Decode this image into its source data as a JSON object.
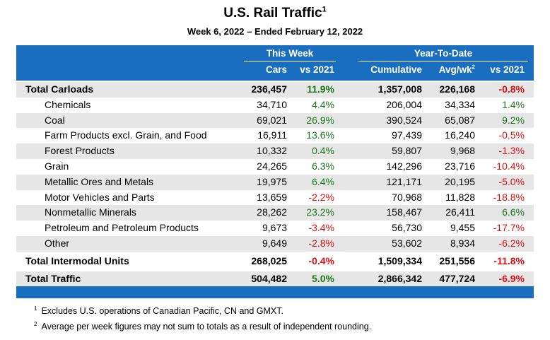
{
  "title": "U.S. Rail Traffic",
  "title_footnote": "1",
  "subtitle": "Week 6, 2022 – Ended February 12, 2022",
  "header": {
    "group_this_week": "This Week",
    "group_ytd": "Year-To-Date",
    "col_cars": "Cars",
    "col_vs2021_week": "vs 2021",
    "col_cumulative": "Cumulative",
    "col_avgwk": "Avg/wk",
    "col_avgwk_sup": "2",
    "col_vs2021_ytd": "vs 2021"
  },
  "rows": [
    {
      "label": "Total Carloads",
      "cars": "236,457",
      "week_vs": "11.9%",
      "cum": "1,357,008",
      "avg": "226,168",
      "ytd_vs": "-0.8%"
    },
    {
      "label": "Chemicals",
      "cars": "34,710",
      "week_vs": "4.4%",
      "cum": "206,004",
      "avg": "34,334",
      "ytd_vs": "1.4%"
    },
    {
      "label": "Coal",
      "cars": "69,021",
      "week_vs": "26.9%",
      "cum": "390,524",
      "avg": "65,087",
      "ytd_vs": "9.2%"
    },
    {
      "label": "Farm Products excl. Grain, and Food",
      "cars": "16,911",
      "week_vs": "13.6%",
      "cum": "97,439",
      "avg": "16,240",
      "ytd_vs": "-0.5%"
    },
    {
      "label": "Forest Products",
      "cars": "10,332",
      "week_vs": "0.4%",
      "cum": "59,807",
      "avg": "9,968",
      "ytd_vs": "-1.3%"
    },
    {
      "label": "Grain",
      "cars": "24,265",
      "week_vs": "6.3%",
      "cum": "142,296",
      "avg": "23,716",
      "ytd_vs": "-10.4%"
    },
    {
      "label": "Metallic Ores and Metals",
      "cars": "19,975",
      "week_vs": "6.4%",
      "cum": "121,171",
      "avg": "20,195",
      "ytd_vs": "-5.0%"
    },
    {
      "label": "Motor Vehicles and Parts",
      "cars": "13,659",
      "week_vs": "-2.2%",
      "cum": "70,968",
      "avg": "11,828",
      "ytd_vs": "-18.8%"
    },
    {
      "label": "Nonmetallic Minerals",
      "cars": "28,262",
      "week_vs": "23.2%",
      "cum": "158,467",
      "avg": "26,411",
      "ytd_vs": "6.6%"
    },
    {
      "label": "Petroleum and Petroleum Products",
      "cars": "9,673",
      "week_vs": "-3.4%",
      "cum": "56,730",
      "avg": "9,455",
      "ytd_vs": "-17.7%"
    },
    {
      "label": "Other",
      "cars": "9,649",
      "week_vs": "-2.8%",
      "cum": "53,602",
      "avg": "8,934",
      "ytd_vs": "-6.2%"
    },
    {
      "label": "Total Intermodal Units",
      "cars": "268,025",
      "week_vs": "-0.4%",
      "cum": "1,509,334",
      "avg": "251,556",
      "ytd_vs": "-11.8%"
    },
    {
      "label": "Total Traffic",
      "cars": "504,482",
      "week_vs": "5.0%",
      "cum": "2,866,342",
      "avg": "477,724",
      "ytd_vs": "-6.9%"
    }
  ],
  "colors": {
    "header_blue": "#1a6ec0",
    "positive": "#1a7a1a",
    "negative": "#e01010",
    "row_shade": "#e6e6e6"
  },
  "footnotes": [
    {
      "num": "1",
      "text": "Excludes U.S. operations of Canadian Pacific, CN and GMXT."
    },
    {
      "num": "2",
      "text": "Average per week figures may not sum to totals as a result of independent rounding."
    }
  ]
}
